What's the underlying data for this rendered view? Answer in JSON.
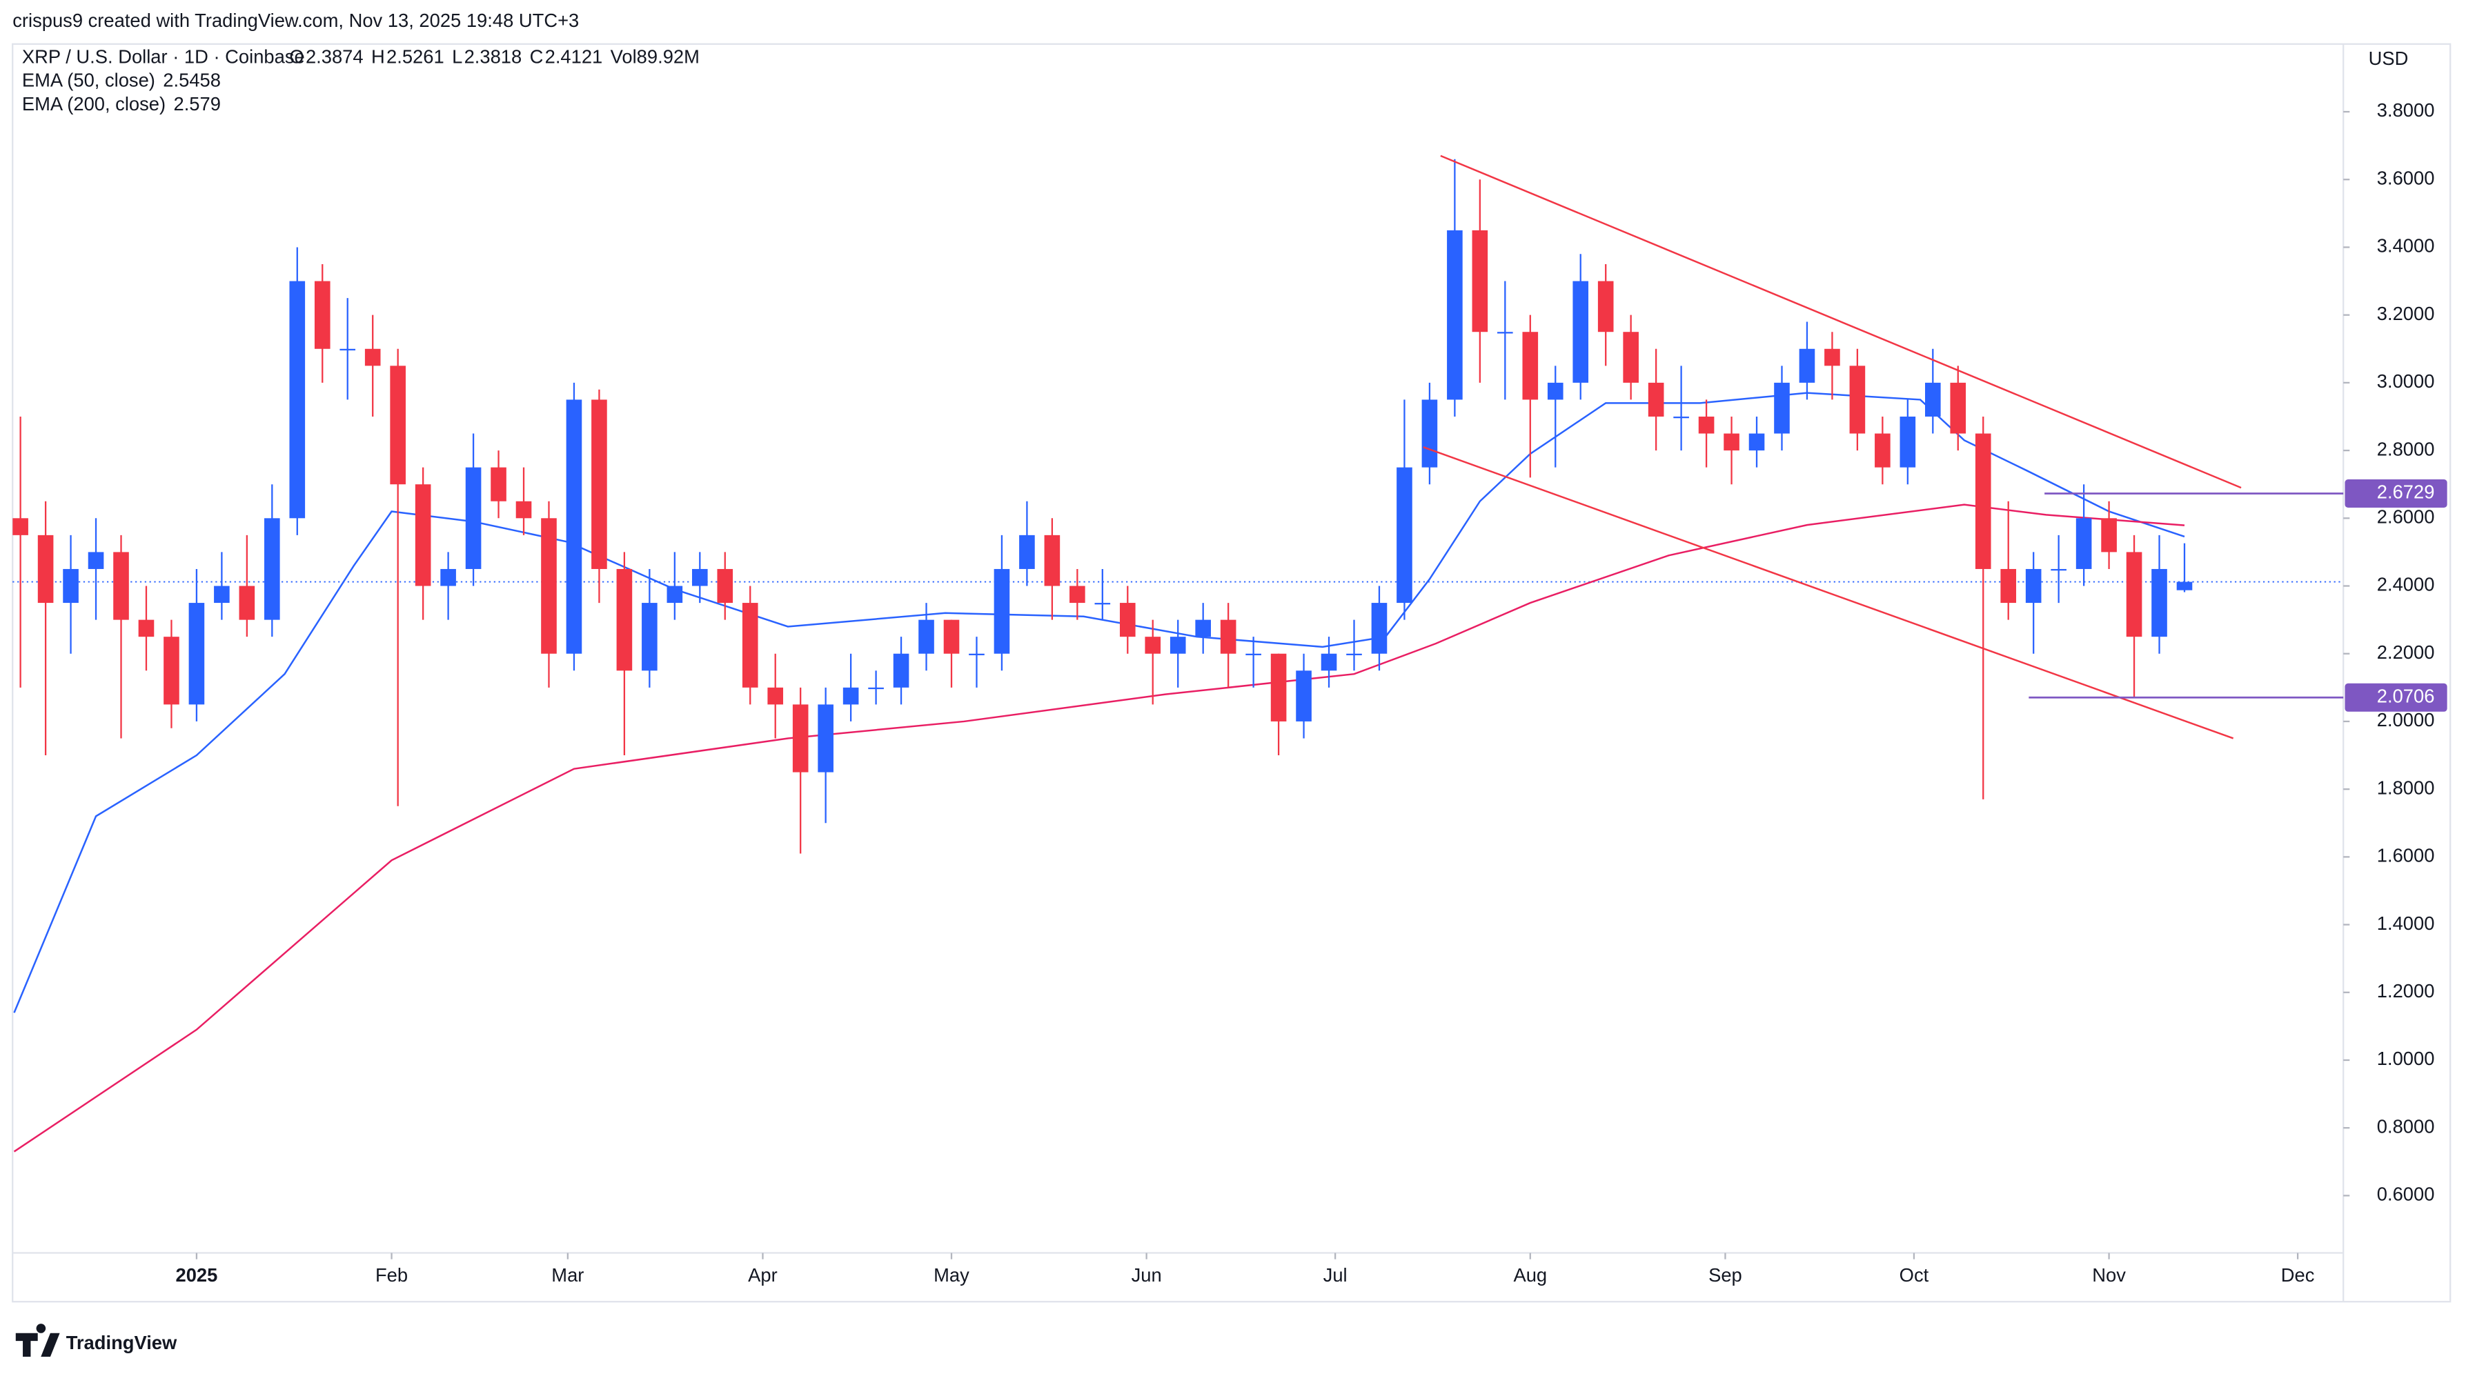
{
  "chart_data": {
    "type": "candlestick",
    "attribution": "crispus9 created with TradingView.com, Nov 13, 2025 19:48 UTC+3",
    "title": "XRP / U.S. Dollar · 1D · Coinbase",
    "quote": [
      {
        "label": "O",
        "value": 2.3874
      },
      {
        "label": "H",
        "value": 2.5261
      },
      {
        "label": "L",
        "value": 2.3818
      },
      {
        "label": "C",
        "value": 2.4121
      }
    ],
    "volume": {
      "label": "Vol",
      "value": "89.92M"
    },
    "currency": "USD",
    "brand": "TradingView",
    "up_color": "#2962ff",
    "down_color": "#f23645",
    "xlim": [
      -29.25,
      341.25
    ],
    "xticks": [
      {
        "value": 0,
        "label": "2025"
      },
      {
        "value": 31,
        "label": "Feb"
      },
      {
        "value": 59,
        "label": "Mar"
      },
      {
        "value": 90,
        "label": "Apr"
      },
      {
        "value": 120,
        "label": "May"
      },
      {
        "value": 151,
        "label": "Jun"
      },
      {
        "value": 181,
        "label": "Jul"
      },
      {
        "value": 212,
        "label": "Aug"
      },
      {
        "value": 243,
        "label": "Sep"
      },
      {
        "value": 273,
        "label": "Oct"
      },
      {
        "value": 304,
        "label": "Nov"
      },
      {
        "value": 334,
        "label": "Dec"
      }
    ],
    "ylim": [
      0.44,
      4.0
    ],
    "yticks": [
      {
        "value": 0.6,
        "label": "0.6000"
      },
      {
        "value": 0.8,
        "label": "0.8000"
      },
      {
        "value": 1.0,
        "label": "1.0000"
      },
      {
        "value": 1.2,
        "label": "1.2000"
      },
      {
        "value": 1.4,
        "label": "1.4000"
      },
      {
        "value": 1.6,
        "label": "1.6000"
      },
      {
        "value": 1.8,
        "label": "1.8000"
      },
      {
        "value": 2.0,
        "label": "2.0000"
      },
      {
        "value": 2.2,
        "label": "2.2000"
      },
      {
        "value": 2.4,
        "label": "2.4000"
      },
      {
        "value": 2.6,
        "label": "2.6000"
      },
      {
        "value": 2.8,
        "label": "2.8000"
      },
      {
        "value": 3.0,
        "label": "3.0000"
      },
      {
        "value": 3.2,
        "label": "3.2000"
      },
      {
        "value": 3.4,
        "label": "3.4000"
      },
      {
        "value": 3.6,
        "label": "3.6000"
      },
      {
        "value": 3.8,
        "label": "3.8000"
      }
    ],
    "x": [
      -28,
      -24,
      -20,
      -16,
      -12,
      -8,
      -4,
      0,
      4,
      8,
      12,
      16,
      20,
      24,
      28,
      32,
      36,
      40,
      44,
      48,
      52,
      56,
      60,
      64,
      68,
      72,
      76,
      80,
      84,
      88,
      92,
      96,
      100,
      104,
      108,
      112,
      116,
      120,
      124,
      128,
      132,
      136,
      140,
      144,
      148,
      152,
      156,
      160,
      164,
      168,
      172,
      176,
      180,
      184,
      188,
      192,
      196,
      200,
      204,
      208,
      212,
      216,
      220,
      224,
      228,
      232,
      236,
      240,
      244,
      248,
      252,
      256,
      260,
      264,
      268,
      272,
      276,
      280,
      284,
      288,
      292,
      296,
      300,
      304,
      308,
      312,
      316
    ],
    "ohlc": [
      [
        2.6,
        2.9,
        2.1,
        2.55
      ],
      [
        2.55,
        2.65,
        1.9,
        2.35
      ],
      [
        2.35,
        2.55,
        2.2,
        2.45
      ],
      [
        2.45,
        2.6,
        2.3,
        2.5
      ],
      [
        2.5,
        2.55,
        1.95,
        2.3
      ],
      [
        2.3,
        2.4,
        2.15,
        2.25
      ],
      [
        2.25,
        2.3,
        1.98,
        2.05
      ],
      [
        2.05,
        2.45,
        2.0,
        2.35
      ],
      [
        2.35,
        2.5,
        2.3,
        2.4
      ],
      [
        2.4,
        2.55,
        2.25,
        2.3
      ],
      [
        2.3,
        2.7,
        2.25,
        2.6
      ],
      [
        2.6,
        3.4,
        2.55,
        3.3
      ],
      [
        3.3,
        3.35,
        3.0,
        3.1
      ],
      [
        3.1,
        3.25,
        2.95,
        3.1
      ],
      [
        3.1,
        3.2,
        2.9,
        3.05
      ],
      [
        3.05,
        3.1,
        1.75,
        2.7
      ],
      [
        2.7,
        2.75,
        2.3,
        2.4
      ],
      [
        2.4,
        2.5,
        2.3,
        2.45
      ],
      [
        2.45,
        2.85,
        2.4,
        2.75
      ],
      [
        2.75,
        2.8,
        2.6,
        2.65
      ],
      [
        2.65,
        2.75,
        2.55,
        2.6
      ],
      [
        2.6,
        2.65,
        2.1,
        2.2
      ],
      [
        2.2,
        3.0,
        2.15,
        2.95
      ],
      [
        2.95,
        2.98,
        2.35,
        2.45
      ],
      [
        2.45,
        2.5,
        1.9,
        2.15
      ],
      [
        2.15,
        2.45,
        2.1,
        2.35
      ],
      [
        2.35,
        2.5,
        2.3,
        2.4
      ],
      [
        2.4,
        2.5,
        2.35,
        2.45
      ],
      [
        2.45,
        2.5,
        2.3,
        2.35
      ],
      [
        2.35,
        2.4,
        2.05,
        2.1
      ],
      [
        2.1,
        2.2,
        1.95,
        2.05
      ],
      [
        2.05,
        2.1,
        1.61,
        1.85
      ],
      [
        1.85,
        2.1,
        1.7,
        2.05
      ],
      [
        2.05,
        2.2,
        2.0,
        2.1
      ],
      [
        2.1,
        2.15,
        2.05,
        2.1
      ],
      [
        2.1,
        2.25,
        2.05,
        2.2
      ],
      [
        2.2,
        2.35,
        2.15,
        2.3
      ],
      [
        2.3,
        2.3,
        2.1,
        2.2
      ],
      [
        2.2,
        2.25,
        2.1,
        2.2
      ],
      [
        2.2,
        2.55,
        2.15,
        2.45
      ],
      [
        2.45,
        2.65,
        2.4,
        2.55
      ],
      [
        2.55,
        2.6,
        2.3,
        2.4
      ],
      [
        2.4,
        2.45,
        2.3,
        2.35
      ],
      [
        2.35,
        2.45,
        2.3,
        2.35
      ],
      [
        2.35,
        2.4,
        2.2,
        2.25
      ],
      [
        2.25,
        2.3,
        2.05,
        2.2
      ],
      [
        2.2,
        2.3,
        2.1,
        2.25
      ],
      [
        2.25,
        2.35,
        2.2,
        2.3
      ],
      [
        2.3,
        2.35,
        2.1,
        2.2
      ],
      [
        2.2,
        2.25,
        2.1,
        2.2
      ],
      [
        2.2,
        2.2,
        1.9,
        2.0
      ],
      [
        2.0,
        2.2,
        1.95,
        2.15
      ],
      [
        2.15,
        2.25,
        2.1,
        2.2
      ],
      [
        2.2,
        2.3,
        2.15,
        2.2
      ],
      [
        2.2,
        2.4,
        2.15,
        2.35
      ],
      [
        2.35,
        2.95,
        2.3,
        2.75
      ],
      [
        2.75,
        3.0,
        2.7,
        2.95
      ],
      [
        2.95,
        3.66,
        2.9,
        3.45
      ],
      [
        3.45,
        3.6,
        3.0,
        3.15
      ],
      [
        3.15,
        3.3,
        2.95,
        3.15
      ],
      [
        3.15,
        3.2,
        2.72,
        2.95
      ],
      [
        2.95,
        3.05,
        2.75,
        3.0
      ],
      [
        3.0,
        3.38,
        2.95,
        3.3
      ],
      [
        3.3,
        3.35,
        3.05,
        3.15
      ],
      [
        3.15,
        3.2,
        2.95,
        3.0
      ],
      [
        3.0,
        3.1,
        2.8,
        2.9
      ],
      [
        2.9,
        3.05,
        2.8,
        2.9
      ],
      [
        2.9,
        2.95,
        2.75,
        2.85
      ],
      [
        2.85,
        2.9,
        2.7,
        2.8
      ],
      [
        2.8,
        2.9,
        2.75,
        2.85
      ],
      [
        2.85,
        3.05,
        2.8,
        3.0
      ],
      [
        3.0,
        3.18,
        2.95,
        3.1
      ],
      [
        3.1,
        3.15,
        2.95,
        3.05
      ],
      [
        3.05,
        3.1,
        2.8,
        2.85
      ],
      [
        2.85,
        2.9,
        2.7,
        2.75
      ],
      [
        2.75,
        2.95,
        2.7,
        2.9
      ],
      [
        2.9,
        3.1,
        2.85,
        3.0
      ],
      [
        3.0,
        3.05,
        2.8,
        2.85
      ],
      [
        2.85,
        2.9,
        1.77,
        2.45
      ],
      [
        2.45,
        2.65,
        2.3,
        2.35
      ],
      [
        2.35,
        2.5,
        2.2,
        2.45
      ],
      [
        2.45,
        2.55,
        2.35,
        2.45
      ],
      [
        2.45,
        2.7,
        2.4,
        2.6
      ],
      [
        2.6,
        2.65,
        2.45,
        2.5
      ],
      [
        2.5,
        2.55,
        2.07,
        2.25
      ],
      [
        2.25,
        2.55,
        2.2,
        2.45
      ],
      [
        2.3874,
        2.5261,
        2.3818,
        2.4121
      ]
    ],
    "series": [
      {
        "name": "EMA (50, close)",
        "last": 2.5458,
        "color": "#2962ff",
        "x": [
          -29,
          -16,
          0,
          14,
          25,
          31,
          44,
          59,
          76,
          94,
          119,
          141,
          159,
          179,
          189,
          196,
          204,
          212,
          224,
          239,
          256,
          274,
          281,
          291,
          304,
          316
        ],
        "values": [
          1.14,
          1.72,
          1.9,
          2.14,
          2.46,
          2.62,
          2.59,
          2.53,
          2.39,
          2.28,
          2.32,
          2.31,
          2.25,
          2.22,
          2.25,
          2.42,
          2.65,
          2.79,
          2.94,
          2.94,
          2.97,
          2.95,
          2.83,
          2.74,
          2.62,
          2.5458
        ]
      },
      {
        "name": "EMA (200, close)",
        "last": 2.579,
        "color": "#e91e63",
        "x": [
          -29,
          0,
          31,
          60,
          94,
          122,
          154,
          184,
          197,
          212,
          234,
          256,
          281,
          294,
          316
        ],
        "values": [
          0.73,
          1.09,
          1.59,
          1.86,
          1.95,
          2.0,
          2.08,
          2.14,
          2.23,
          2.35,
          2.49,
          2.58,
          2.64,
          2.61,
          2.579
        ]
      }
    ],
    "trendlines": [
      {
        "color": "#f23645",
        "x": [
          197.75,
          325
        ],
        "values": [
          3.67,
          2.69
        ]
      },
      {
        "color": "#f23645",
        "x": [
          195,
          323.75
        ],
        "values": [
          2.81,
          1.95
        ]
      }
    ],
    "levels": [
      {
        "value": 2.6729,
        "x_start": 293.75,
        "color": "#7e57c2"
      },
      {
        "value": 2.0706,
        "x_start": 291.25,
        "color": "#7e57c2"
      }
    ]
  }
}
